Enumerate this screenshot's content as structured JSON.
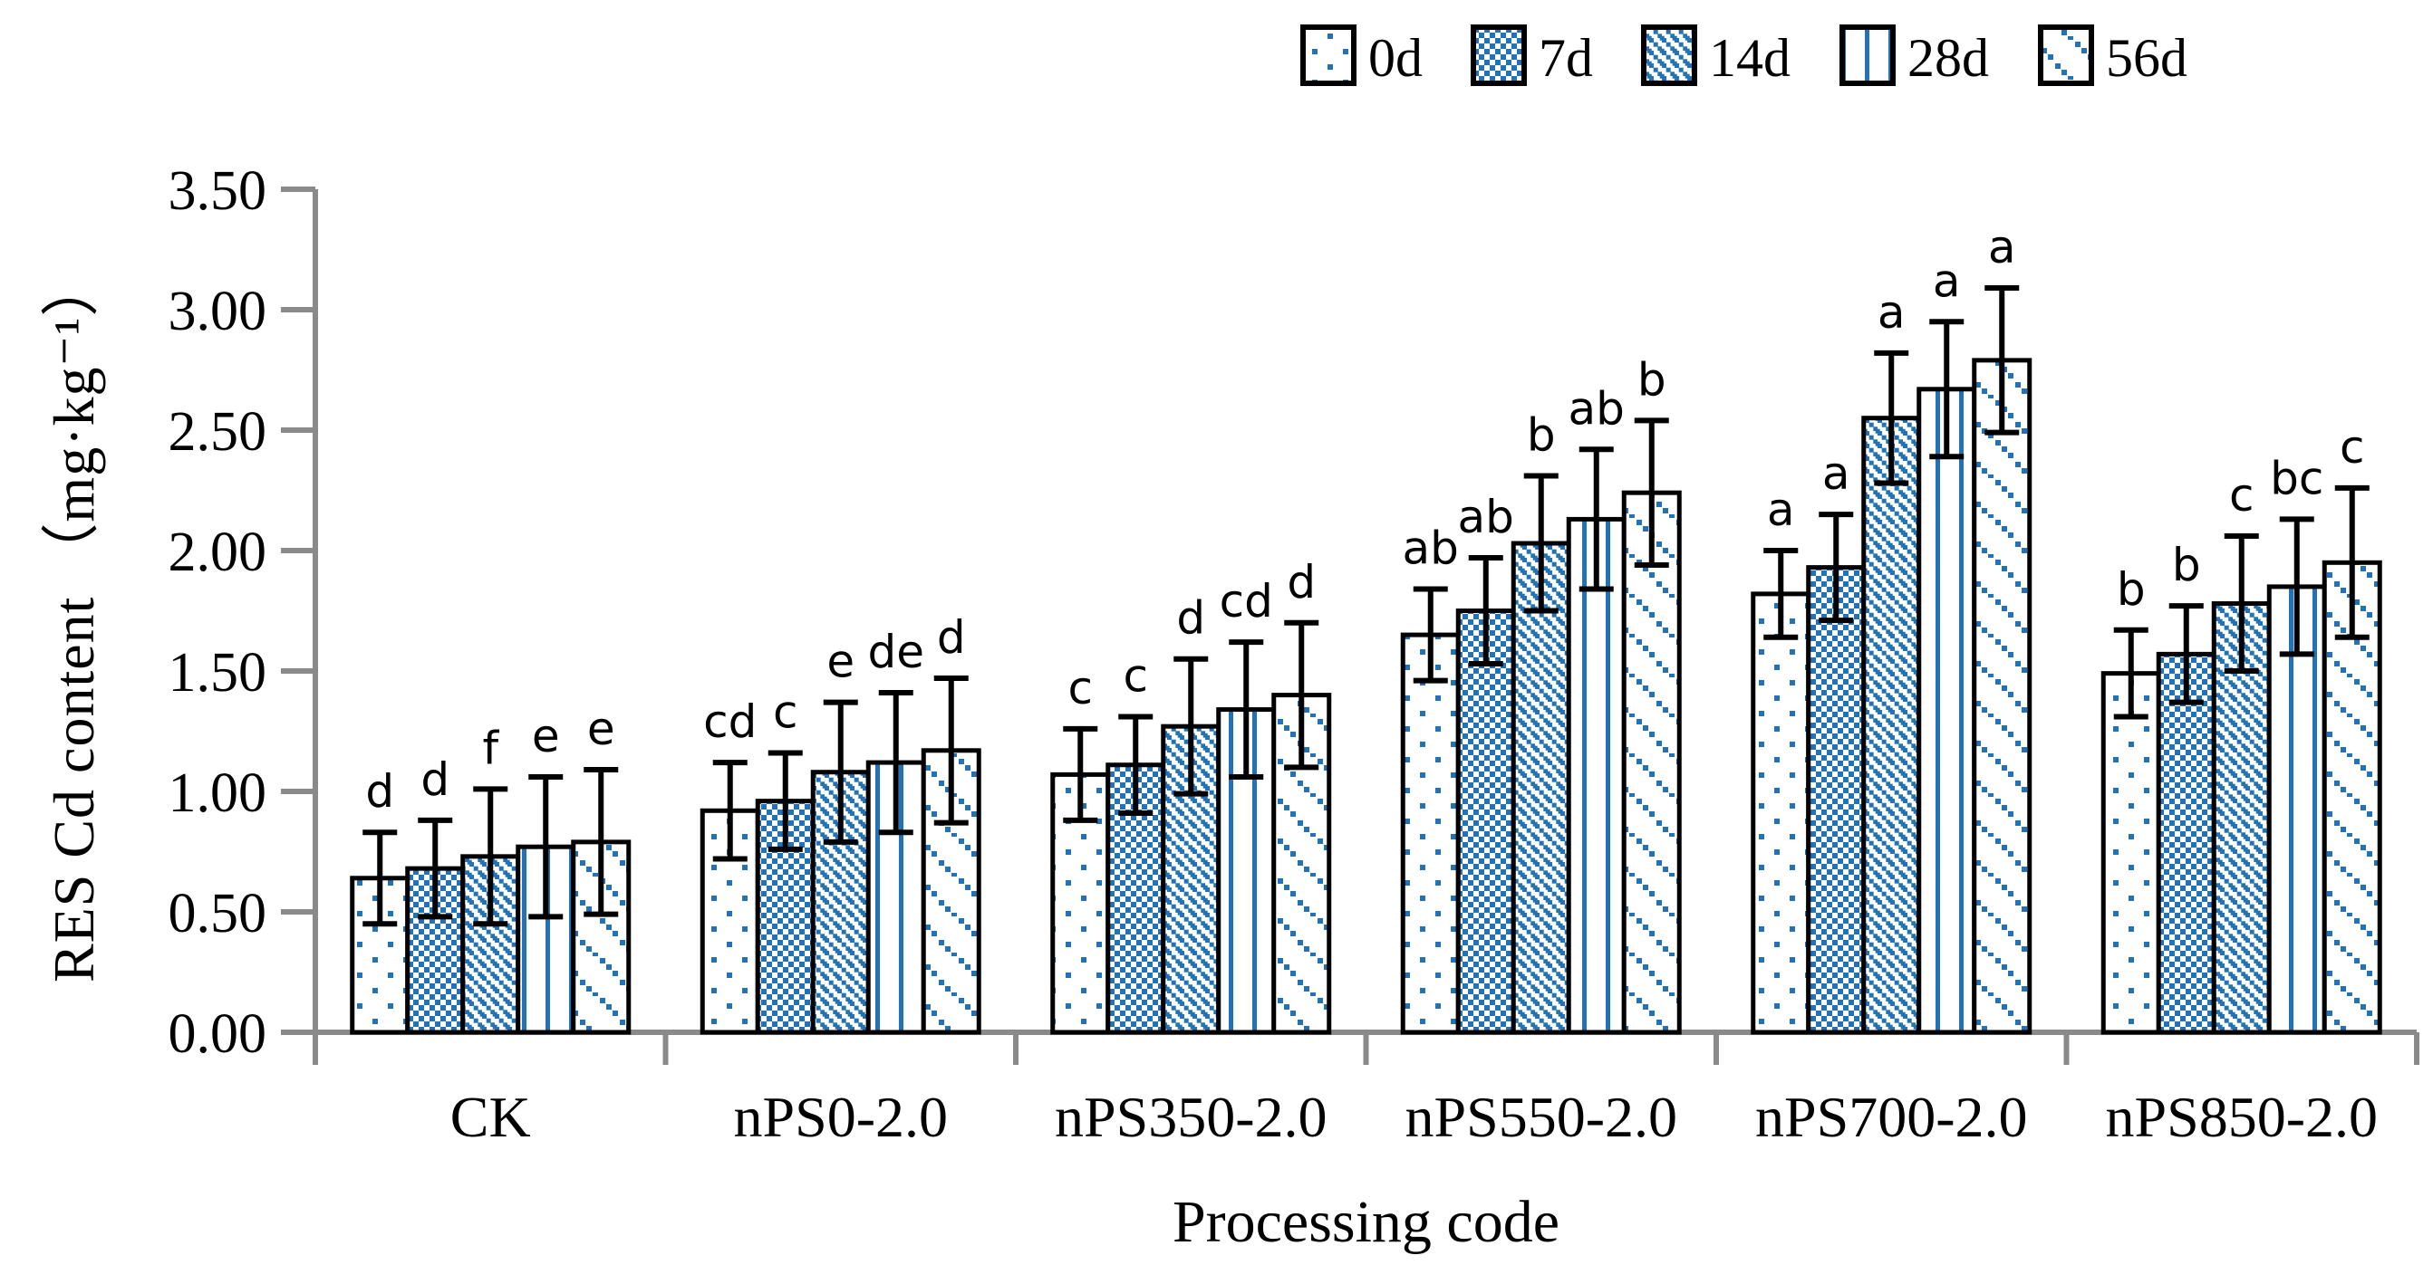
{
  "figure": {
    "x_axis_title": "Processing code",
    "y_axis_title": "RES Cd content （mg·kg⁻¹）"
  },
  "legend": {
    "items": [
      {
        "label": "0d",
        "pattern": "dots-sparse"
      },
      {
        "label": "7d",
        "pattern": "checker"
      },
      {
        "label": "14d",
        "pattern": "diag-dense"
      },
      {
        "label": "28d",
        "pattern": "vlines"
      },
      {
        "label": "56d",
        "pattern": "diag-sparse"
      }
    ]
  },
  "colors": {
    "bar_blue": "#2272b8",
    "axis_gray": "#8a8a8a",
    "outline": "#000000",
    "text": "#000000"
  },
  "chart_data": {
    "type": "bar",
    "title": "",
    "xlabel": "Processing code",
    "ylabel": "RES Cd content (mg·kg-1)",
    "ylim": [
      0.0,
      3.5
    ],
    "ytick_step": 0.5,
    "ytick_labels": [
      "0.00",
      "0.50",
      "1.00",
      "1.50",
      "2.00",
      "2.50",
      "3.00",
      "3.50"
    ],
    "grid": false,
    "legend_position": "top-right",
    "error_bars": true,
    "categories": [
      "CK",
      "nPS0-2.0",
      "nPS350-2.0",
      "nPS550-2.0",
      "nPS700-2.0",
      "nPS850-2.0"
    ],
    "series": [
      {
        "name": "0d",
        "pattern": "dots-sparse",
        "values": [
          0.64,
          0.92,
          1.07,
          1.65,
          1.82,
          1.49
        ],
        "errors": [
          0.19,
          0.2,
          0.19,
          0.19,
          0.18,
          0.18
        ]
      },
      {
        "name": "7d",
        "pattern": "checker",
        "values": [
          0.68,
          0.96,
          1.11,
          1.75,
          1.93,
          1.57
        ],
        "errors": [
          0.2,
          0.2,
          0.2,
          0.22,
          0.22,
          0.2
        ]
      },
      {
        "name": "14d",
        "pattern": "diag-dense",
        "values": [
          0.73,
          1.08,
          1.27,
          2.03,
          2.55,
          1.78
        ],
        "errors": [
          0.28,
          0.29,
          0.28,
          0.28,
          0.27,
          0.28
        ]
      },
      {
        "name": "28d",
        "pattern": "vlines",
        "values": [
          0.77,
          1.12,
          1.34,
          2.13,
          2.67,
          1.85
        ],
        "errors": [
          0.29,
          0.29,
          0.28,
          0.29,
          0.28,
          0.28
        ]
      },
      {
        "name": "56d",
        "pattern": "diag-sparse",
        "values": [
          0.79,
          1.17,
          1.4,
          2.24,
          2.79,
          1.95
        ],
        "errors": [
          0.3,
          0.3,
          0.3,
          0.3,
          0.3,
          0.31
        ]
      }
    ],
    "sig_letters": [
      [
        "d",
        "d",
        "f",
        "e",
        "e"
      ],
      [
        "cd",
        "c",
        "e",
        "de",
        "d"
      ],
      [
        "c",
        "c",
        "d",
        "cd",
        "d"
      ],
      [
        "ab",
        "ab",
        "b",
        "ab",
        "b"
      ],
      [
        "a",
        "a",
        "a",
        "a",
        "a"
      ],
      [
        "b",
        "b",
        "c",
        "bc",
        "c"
      ]
    ]
  }
}
